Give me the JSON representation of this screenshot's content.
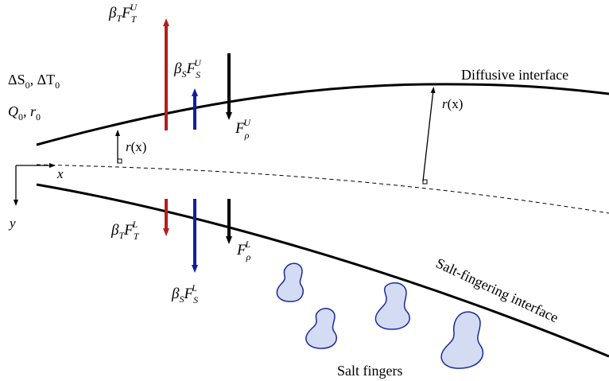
{
  "colors": {
    "temperature_flux": "#b71c1c",
    "salt_flux": "#0d1fa0",
    "density_flux": "#000000",
    "salt_finger_fill": "#d4dcf4",
    "salt_finger_stroke": "#1a2a9a"
  },
  "inlet": {
    "line1_a": "ΔS",
    "line1_a_sub": "0",
    "line1_sep": ", ",
    "line1_b": "ΔT",
    "line1_b_sub": "0",
    "line2_a": "Q",
    "line2_a_sub": "0",
    "line2_sep": ", ",
    "line2_b": "r",
    "line2_b_sub": "0"
  },
  "axes": {
    "x": "x",
    "y": "y"
  },
  "radius_label": {
    "r": "r",
    "paren": "(x)"
  },
  "interfaces": {
    "upper": "Diffusive interface",
    "lower": "Salt-fingering interface"
  },
  "salt_fingers_label": "Salt fingers",
  "upper_fluxes": {
    "temperature": {
      "coef": "β",
      "coef_sub": "T",
      "flux": "F",
      "flux_sub": "T",
      "flux_sup": "U"
    },
    "salt": {
      "coef": "β",
      "coef_sub": "S",
      "flux": "F",
      "flux_sub": "S",
      "flux_sup": "U"
    },
    "density": {
      "flux": "F",
      "flux_sub": "ρ",
      "flux_sup": "U"
    }
  },
  "lower_fluxes": {
    "temperature": {
      "coef": "β",
      "coef_sub": "T",
      "flux": "F",
      "flux_sub": "T",
      "flux_sup": "L"
    },
    "salt": {
      "coef": "β",
      "coef_sub": "S",
      "flux": "F",
      "flux_sub": "S",
      "flux_sup": "L"
    },
    "density": {
      "flux": "F",
      "flux_sub": "ρ",
      "flux_sup": "L"
    }
  }
}
